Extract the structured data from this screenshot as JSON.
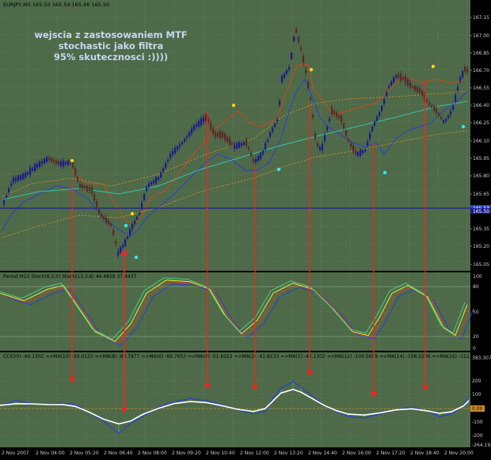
{
  "chart_header": "EURJPY,M5  165.50 165.54 165.46 165.50",
  "annotation": {
    "lines": [
      "wejscia z zastosowaniem MTF",
      "stochastic jako filtra",
      "95% skutecznosci :))))"
    ]
  },
  "price_ticks": [
    "167.15",
    "167.00",
    "166.85",
    "166.70",
    "166.55",
    "166.40",
    "166.25",
    "166.10",
    "165.95",
    "165.80",
    "165.65",
    "165.50",
    "165.35",
    "165.20",
    "165.05"
  ],
  "price_marker": "165.50",
  "price_marker_over": "165.53",
  "stoch_header": "Period M15 Stoch(8,3,5)  Stoch(13,3,8) 44.4828 37.4437",
  "stoch_ticks": [
    "100",
    "80",
    "50",
    "20",
    "0"
  ],
  "cci_header": "CCI(50) -40.1302  =>MA(10) -93.0131  =>MA(8) -83.7877  =>MA(6) -69.7053  =>MA(4) -51.6322  =>MA(2) -41.8133  =>MA(1) -40.1302  =>MA(12) -100.5659  =>MA(14) -108.2206  =>MA(16) -112.4585",
  "cci_ticks": [
    "383.307",
    "200",
    "100",
    "0",
    "-100",
    "-200",
    "-264.193"
  ],
  "cci_marker": "0.00",
  "time_labels": [
    "2 Nov 2007",
    "2 Nov 04:00",
    "2 Nov 05:20",
    "2 Nov 06:40",
    "2 Nov 08:00",
    "2 Nov 09:20",
    "2 Nov 10:40",
    "2 Nov 12:00",
    "2 Nov 13:20",
    "2 Nov 14:40",
    "2 Nov 16:00",
    "2 Nov 17:20",
    "2 Nov 18:40",
    "2 Nov 20:00"
  ],
  "colors": {
    "background": "#4e6a48",
    "grid": "#6b8266",
    "bull_candle": "#1a1a8c",
    "bear_candle": "#5a2626",
    "signal_arrow": "#ff2020",
    "horizontal_line": "#1a1a8c",
    "ma_fast": "#d4451c",
    "ma_slow": "#2a3fd0",
    "ma_teal": "#38c0b0",
    "ma_dotted": "#d08a2a",
    "dot_yellow": "#ffd21a",
    "dot_cyan": "#30e8ff",
    "marker_fill": "#2a3fd0",
    "cci_marker_fill": "#d08a2a"
  }
}
